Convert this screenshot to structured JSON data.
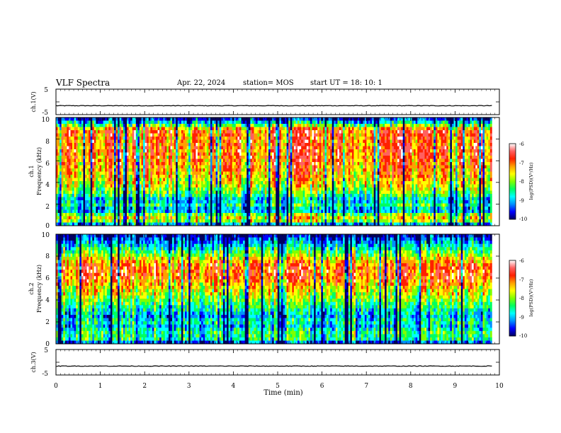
{
  "header": {
    "title": "VLF Spectra",
    "date": "Apr. 22, 2024",
    "station": "station= MOS",
    "start_ut": "start  UT =   18: 10: 1"
  },
  "colorbar": {
    "label": "log(PSD)(V²/Hz)",
    "colors": [
      "#000060",
      "#0000ff",
      "#0090ff",
      "#00ffff",
      "#00ff60",
      "#80ff00",
      "#ffff00",
      "#ffa000",
      "#ff2000",
      "#ff6060",
      "#ffffff"
    ]
  },
  "chart_data": [
    {
      "type": "line",
      "name": "ch1-waveform",
      "ylabel": "ch.1(V)",
      "ylim": [
        -5,
        5
      ],
      "yticks": [
        "5",
        "-5"
      ],
      "x": [
        0,
        10
      ],
      "values": [
        -1.5,
        -1.5
      ],
      "xlim": [
        0,
        10
      ]
    },
    {
      "type": "heatmap",
      "name": "ch1-spectrogram",
      "ylabel_line1": "ch.1",
      "ylabel_line2": "Frequency (kHz)",
      "ylim": [
        0,
        10
      ],
      "xlim": [
        0,
        10
      ],
      "yticks": [
        "0",
        "2",
        "4",
        "6",
        "8",
        "10"
      ],
      "data_end_min": 9.83,
      "band_profile": [
        {
          "f": 0.0,
          "level": -9.8
        },
        {
          "f": 0.3,
          "level": -8.4
        },
        {
          "f": 0.6,
          "level": -7.5
        },
        {
          "f": 1.0,
          "level": -8.0
        },
        {
          "f": 1.4,
          "level": -9.2
        },
        {
          "f": 1.9,
          "level": -8.6
        },
        {
          "f": 2.4,
          "level": -9.0
        },
        {
          "f": 3.0,
          "level": -8.2
        },
        {
          "f": 4.0,
          "level": -7.6
        },
        {
          "f": 5.0,
          "level": -7.3
        },
        {
          "f": 6.0,
          "level": -7.1
        },
        {
          "f": 7.0,
          "level": -7.0
        },
        {
          "f": 8.0,
          "level": -7.1
        },
        {
          "f": 8.8,
          "level": -6.9
        },
        {
          "f": 9.3,
          "level": -8.2
        },
        {
          "f": 9.7,
          "level": -9.3
        },
        {
          "f": 10.0,
          "level": -9.9
        }
      ],
      "colorbar": {
        "min": -10,
        "max": -6,
        "ticks": [
          "-6",
          "-7",
          "-8",
          "-9",
          "-10"
        ]
      }
    },
    {
      "type": "heatmap",
      "name": "ch2-spectrogram",
      "ylabel_line1": "ch.2",
      "ylabel_line2": "Frequency (kHz)",
      "ylim": [
        0,
        10
      ],
      "xlim": [
        0,
        10
      ],
      "yticks": [
        "0",
        "2",
        "4",
        "6",
        "8",
        "10"
      ],
      "data_end_min": 9.83,
      "band_profile": [
        {
          "f": 0.0,
          "level": -9.9
        },
        {
          "f": 0.4,
          "level": -8.6
        },
        {
          "f": 1.0,
          "level": -8.4
        },
        {
          "f": 1.6,
          "level": -9.0
        },
        {
          "f": 2.0,
          "level": -8.6
        },
        {
          "f": 2.5,
          "level": -9.1
        },
        {
          "f": 3.2,
          "level": -8.6
        },
        {
          "f": 4.0,
          "level": -8.1
        },
        {
          "f": 5.0,
          "level": -7.6
        },
        {
          "f": 6.0,
          "level": -7.0
        },
        {
          "f": 6.8,
          "level": -6.9
        },
        {
          "f": 7.5,
          "level": -7.3
        },
        {
          "f": 8.3,
          "level": -8.2
        },
        {
          "f": 9.0,
          "level": -8.9
        },
        {
          "f": 9.6,
          "level": -9.5
        },
        {
          "f": 10.0,
          "level": -9.9
        }
      ],
      "colorbar": {
        "min": -10,
        "max": -6,
        "ticks": [
          "-6",
          "-7",
          "-8",
          "-9",
          "-10"
        ]
      }
    },
    {
      "type": "line",
      "name": "ch3-waveform",
      "ylabel": "ch.3(V)",
      "ylim": [
        -5,
        5
      ],
      "yticks": [
        "5",
        "-5"
      ],
      "x": [
        0,
        10
      ],
      "values": [
        -1.5,
        -1.5
      ],
      "xlim": [
        0,
        10
      ],
      "xlabel": "Time  (min)",
      "xticks": [
        "0",
        "1",
        "2",
        "3",
        "4",
        "5",
        "6",
        "7",
        "8",
        "9",
        "10"
      ]
    }
  ]
}
